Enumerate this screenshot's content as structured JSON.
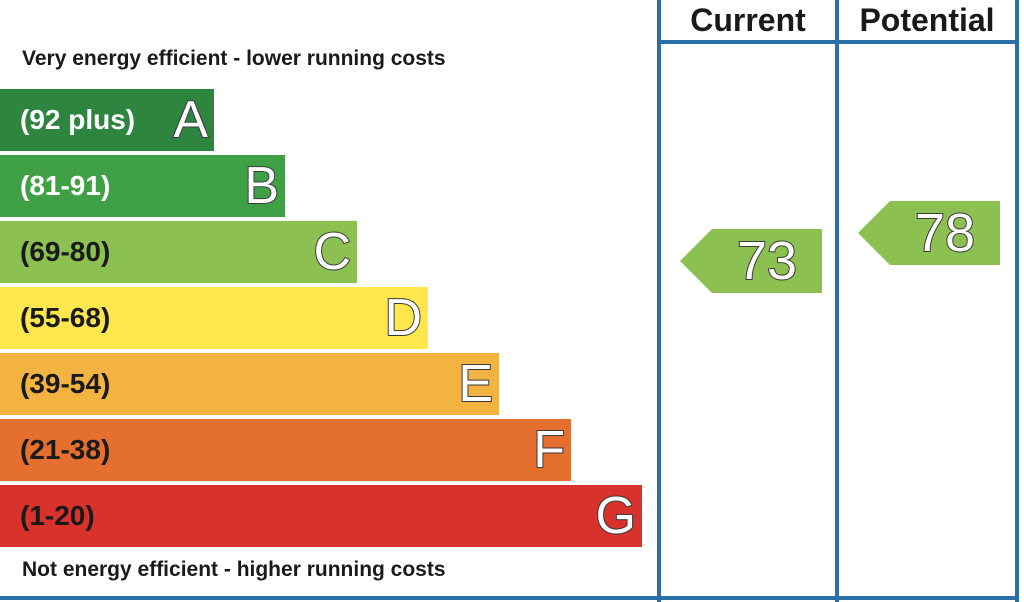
{
  "headers": {
    "current": "Current",
    "potential": "Potential"
  },
  "captions": {
    "top": "Very energy efficient - lower running costs",
    "bottom": "Not energy efficient - higher running costs"
  },
  "chart_data": {
    "type": "bar",
    "categories": [
      "A",
      "B",
      "C",
      "D",
      "E",
      "F",
      "G"
    ],
    "bands": [
      {
        "letter": "A",
        "range": "(92 plus)",
        "min": 92,
        "max": null,
        "color": "#2e8540",
        "text_color": "#ffffff"
      },
      {
        "letter": "B",
        "range": "(81-91)",
        "min": 81,
        "max": 91,
        "color": "#3fa046",
        "text_color": "#ffffff"
      },
      {
        "letter": "C",
        "range": "(69-80)",
        "min": 69,
        "max": 80,
        "color": "#8cc152",
        "text_color": "#1a1a1a"
      },
      {
        "letter": "D",
        "range": "(55-68)",
        "min": 55,
        "max": 68,
        "color": "#fde74c",
        "text_color": "#1a1a1a"
      },
      {
        "letter": "E",
        "range": "(39-54)",
        "min": 39,
        "max": 54,
        "color": "#f2b340",
        "text_color": "#1a1a1a"
      },
      {
        "letter": "F",
        "range": "(21-38)",
        "min": 21,
        "max": 38,
        "color": "#e56f2e",
        "text_color": "#1a1a1a"
      },
      {
        "letter": "G",
        "range": "(1-20)",
        "min": 1,
        "max": 20,
        "color": "#d9312c",
        "text_color": "#1a1a1a"
      }
    ],
    "current": {
      "value": 73,
      "band": "C",
      "color": "#8cc152"
    },
    "potential": {
      "value": 78,
      "band": "C",
      "color": "#8cc152"
    }
  }
}
